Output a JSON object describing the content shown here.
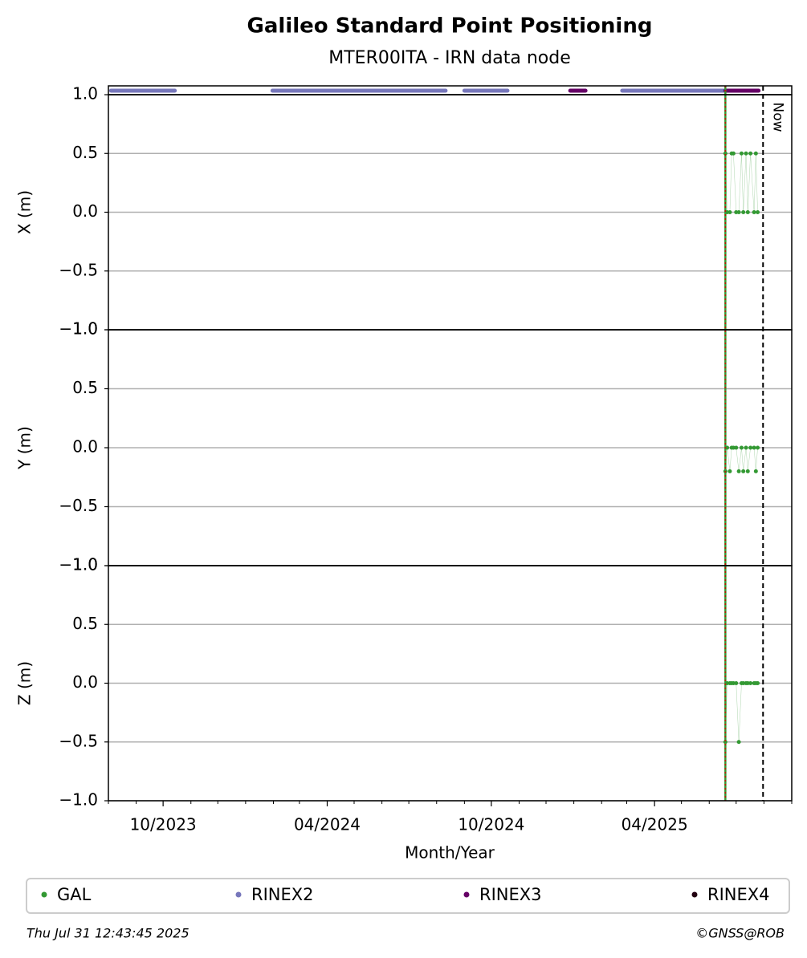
{
  "chart_data": {
    "type": "scatter",
    "title": "Galileo Standard Point Positioning",
    "subtitle": "MTER00ITA - IRN data node",
    "xlabel": "Month/Year",
    "xlim": [
      "2023-08-01",
      "2025-09-01"
    ],
    "xticks": [
      {
        "value": "2023-10-01",
        "label": "10/2023"
      },
      {
        "value": "2024-04-01",
        "label": "04/2024"
      },
      {
        "value": "2024-10-01",
        "label": "10/2024"
      },
      {
        "value": "2025-04-01",
        "label": "04/2025"
      }
    ],
    "xminorticks": [
      "2023-08-01",
      "2023-09-01",
      "2023-11-01",
      "2023-12-01",
      "2024-01-01",
      "2024-02-01",
      "2024-03-01",
      "2024-05-01",
      "2024-06-01",
      "2024-07-01",
      "2024-08-01",
      "2024-09-01",
      "2024-11-01",
      "2024-12-01",
      "2025-01-01",
      "2025-02-01",
      "2025-03-01",
      "2025-05-01",
      "2025-06-01",
      "2025-07-01",
      "2025-08-01",
      "2025-09-01"
    ],
    "ylim": [
      -1,
      1
    ],
    "yticks": [
      {
        "value": -1,
        "label": "−1.0"
      },
      {
        "value": -0.5,
        "label": "−0.5"
      },
      {
        "value": 0,
        "label": "0.0"
      },
      {
        "value": 0.5,
        "label": "0.5"
      },
      {
        "value": 1,
        "label": "1.0"
      }
    ],
    "grid": true,
    "now": "2025-07-31",
    "now_label": "Now",
    "marker_date": "2025-06-19",
    "x": [
      "2025-06-19",
      "2025-06-21",
      "2025-06-24",
      "2025-06-26",
      "2025-06-28",
      "2025-07-01",
      "2025-07-04",
      "2025-07-07",
      "2025-07-09",
      "2025-07-12",
      "2025-07-14",
      "2025-07-17",
      "2025-07-21",
      "2025-07-23",
      "2025-07-25"
    ],
    "panels": [
      {
        "ylabel": "X (m)",
        "values": [
          0.5,
          0,
          0,
          0.5,
          0.5,
          0,
          0,
          0.5,
          0,
          0.5,
          0,
          0.5,
          0,
          0.5,
          0
        ]
      },
      {
        "ylabel": "Y (m)",
        "values": [
          -0.2,
          0,
          -0.2,
          0,
          0,
          0,
          -0.2,
          0,
          -0.2,
          0,
          -0.2,
          0,
          0,
          -0.2,
          0
        ]
      },
      {
        "ylabel": "Z (m)",
        "values": [
          -0.5,
          0,
          0,
          0,
          0,
          0,
          -0.5,
          0,
          0,
          0,
          0,
          0,
          0,
          0,
          0
        ]
      }
    ],
    "series": [
      {
        "name": "GAL",
        "color": "#339933"
      },
      {
        "name": "RINEX2",
        "color": "#7777bb",
        "periods": [
          [
            "2023-08-04",
            "2023-10-14"
          ],
          [
            "2024-01-31",
            "2024-08-11"
          ],
          [
            "2024-09-01",
            "2024-10-19"
          ],
          [
            "2025-02-24",
            "2025-06-19"
          ]
        ]
      },
      {
        "name": "RINEX3",
        "color": "#660066",
        "periods": [
          [
            "2024-12-28",
            "2025-01-14"
          ],
          [
            "2025-06-19",
            "2025-07-26"
          ]
        ]
      },
      {
        "name": "RINEX4",
        "color": "#220011",
        "periods": []
      }
    ],
    "timestamp": "Thu Jul 31 12:43:45 2025",
    "credit": "©GNSS@ROB"
  }
}
